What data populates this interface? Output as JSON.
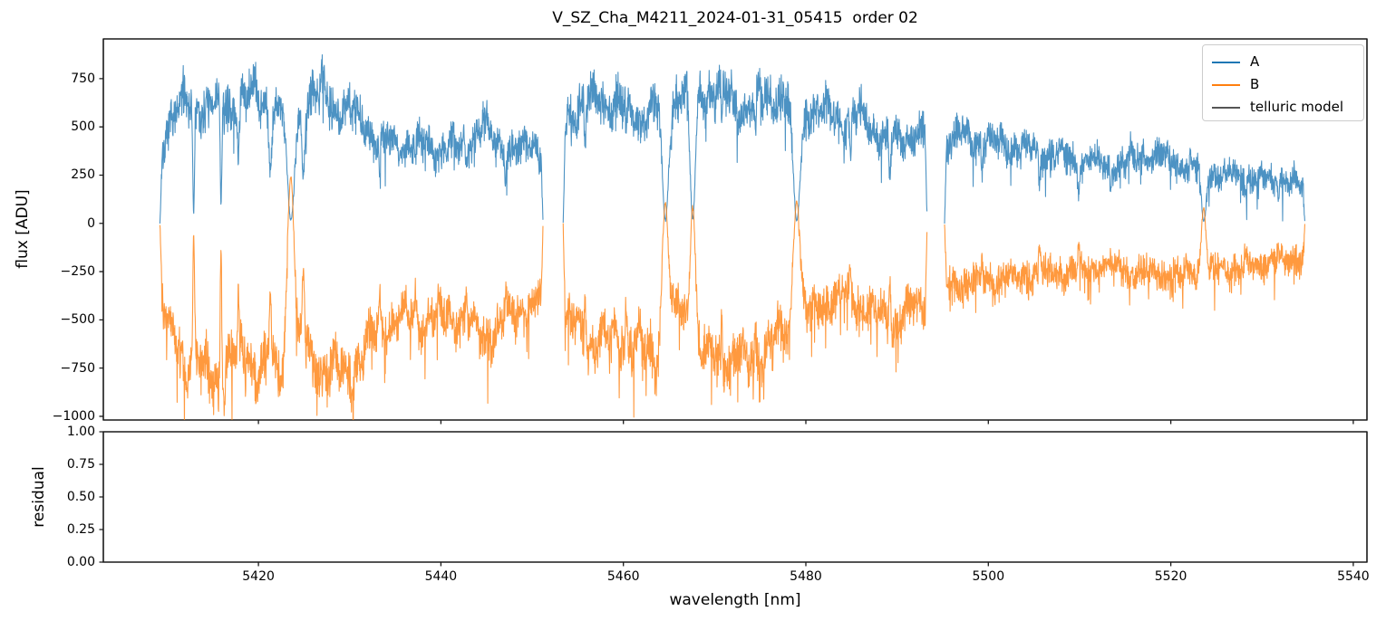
{
  "chart_data": {
    "type": "line",
    "title": "V_SZ_Cha_M4211_2024-01-31_05415  order 02",
    "xlabel": "wavelength [nm]",
    "xlim": [
      5403.0,
      5541.5
    ],
    "xticks": [
      [
        5420,
        "5420"
      ],
      [
        5440,
        "5440"
      ],
      [
        5460,
        "5460"
      ],
      [
        5480,
        "5480"
      ],
      [
        5500,
        "5500"
      ],
      [
        5520,
        "5520"
      ],
      [
        5540,
        "5540"
      ]
    ],
    "main_panel": {
      "ylabel": "flux [ADU]",
      "ylim": [
        -1019,
        956
      ],
      "yticks": [
        [
          750,
          "750"
        ],
        [
          500,
          "500"
        ],
        [
          250,
          "250"
        ],
        [
          0,
          "0"
        ],
        [
          -250,
          "−250"
        ],
        [
          -500,
          "−500"
        ],
        [
          -750,
          "−750"
        ],
        [
          -1000,
          "−1000"
        ]
      ]
    },
    "residual_panel": {
      "ylabel": "residual",
      "ylim": [
        0,
        1
      ],
      "yticks": [
        [
          1.0,
          "1.00"
        ],
        [
          0.75,
          "0.75"
        ],
        [
          0.5,
          "0.50"
        ],
        [
          0.25,
          "0.25"
        ],
        [
          0.0,
          "0.00"
        ]
      ],
      "series": []
    },
    "legend": {
      "position": "upper right",
      "entries": [
        {
          "label": "A",
          "color": "#1f77b4"
        },
        {
          "label": "B",
          "color": "#ff7f0e"
        },
        {
          "label": "telluric model",
          "color": "#555555"
        }
      ]
    },
    "grid": false,
    "frame_color": "#1a1a1a",
    "segments": [
      [
        5409.2,
        5451.2
      ],
      [
        5453.4,
        5493.3
      ],
      [
        5495.2,
        5534.7
      ]
    ],
    "telluric_lines": [
      [
        5412.9,
        0.1,
        0.92
      ],
      [
        5415.9,
        0.09,
        0.85
      ],
      [
        5417.8,
        0.07,
        0.45
      ],
      [
        5421.3,
        0.12,
        0.5
      ],
      [
        5423.55,
        0.4,
        0.975
      ],
      [
        5424.9,
        0.15,
        0.6
      ],
      [
        5433.3,
        0.08,
        0.35
      ],
      [
        5437.2,
        0.07,
        0.3
      ],
      [
        5442.8,
        0.07,
        0.3
      ],
      [
        5447.1,
        0.08,
        0.3
      ],
      [
        5455.8,
        0.08,
        0.35
      ],
      [
        5460.3,
        0.07,
        0.3
      ],
      [
        5464.6,
        0.35,
        0.975
      ],
      [
        5467.6,
        0.3,
        0.97
      ],
      [
        5470.8,
        0.08,
        0.3
      ],
      [
        5474.5,
        0.07,
        0.3
      ],
      [
        5479.0,
        0.4,
        0.975
      ],
      [
        5484.9,
        0.1,
        0.4
      ],
      [
        5489.2,
        0.1,
        0.45
      ],
      [
        5499.3,
        0.08,
        0.3
      ],
      [
        5505.6,
        0.09,
        0.5
      ],
      [
        5509.9,
        0.1,
        0.45
      ],
      [
        5513.4,
        0.07,
        0.3
      ],
      [
        5523.6,
        0.26,
        0.96
      ],
      [
        5528.2,
        0.08,
        0.35
      ],
      [
        5531.8,
        0.08,
        0.3
      ]
    ],
    "b_overshoot_bumps": [
      [
        5423.55,
        0.35,
        260
      ],
      [
        5464.6,
        0.3,
        120
      ],
      [
        5467.6,
        0.26,
        110
      ],
      [
        5479.0,
        0.35,
        130
      ],
      [
        5523.6,
        0.22,
        90
      ]
    ],
    "series": {
      "A": {
        "color": "#1f77b4",
        "alpha": 0.8,
        "linewidth": 1.1,
        "envelope": [
          [
            5409.2,
            260
          ],
          [
            5409.8,
            480
          ],
          [
            5410.5,
            570
          ],
          [
            5412,
            610
          ],
          [
            5414,
            630
          ],
          [
            5416,
            580
          ],
          [
            5417.5,
            630
          ],
          [
            5419,
            650
          ],
          [
            5420.5,
            630
          ],
          [
            5422,
            600
          ],
          [
            5425,
            640
          ],
          [
            5426.5,
            670
          ],
          [
            5428,
            650
          ],
          [
            5429.5,
            600
          ],
          [
            5431,
            530
          ],
          [
            5432.5,
            460
          ],
          [
            5434,
            430
          ],
          [
            5436,
            415
          ],
          [
            5438,
            400
          ],
          [
            5440,
            395
          ],
          [
            5442,
            385
          ],
          [
            5443.8,
            480
          ],
          [
            5444.6,
            520
          ],
          [
            5445.6,
            430
          ],
          [
            5447,
            395
          ],
          [
            5448.5,
            380
          ],
          [
            5450,
            410
          ],
          [
            5451.2,
            390
          ],
          [
            5453.4,
            520
          ],
          [
            5454.5,
            600
          ],
          [
            5456,
            620
          ],
          [
            5457.5,
            650
          ],
          [
            5459,
            630
          ],
          [
            5460.5,
            580
          ],
          [
            5462,
            560
          ],
          [
            5463.5,
            600
          ],
          [
            5466,
            680
          ],
          [
            5469,
            700
          ],
          [
            5470.5,
            690
          ],
          [
            5472,
            640
          ],
          [
            5473.5,
            600
          ],
          [
            5475,
            630
          ],
          [
            5476.5,
            680
          ],
          [
            5478,
            640
          ],
          [
            5480.5,
            600
          ],
          [
            5482,
            560
          ],
          [
            5483.5,
            540
          ],
          [
            5485,
            560
          ],
          [
            5486.5,
            520
          ],
          [
            5488,
            470
          ],
          [
            5490,
            430
          ],
          [
            5492,
            470
          ],
          [
            5493.3,
            450
          ],
          [
            5495.2,
            430
          ],
          [
            5496.5,
            460
          ],
          [
            5498,
            440
          ],
          [
            5500,
            420
          ],
          [
            5502,
            400
          ],
          [
            5504,
            385
          ],
          [
            5506,
            370
          ],
          [
            5508,
            350
          ],
          [
            5510,
            330
          ],
          [
            5512,
            310
          ],
          [
            5514,
            300
          ],
          [
            5516,
            330
          ],
          [
            5517.5,
            360
          ],
          [
            5519,
            340
          ],
          [
            5521,
            300
          ],
          [
            5523,
            270
          ],
          [
            5525,
            260
          ],
          [
            5527,
            250
          ],
          [
            5529,
            235
          ],
          [
            5531,
            220
          ],
          [
            5532.5,
            230
          ],
          [
            5534,
            210
          ],
          [
            5534.7,
            190
          ]
        ]
      },
      "B": {
        "color": "#ff7f0e",
        "alpha": 0.8,
        "linewidth": 1.1,
        "envelope": [
          [
            5409.2,
            -300
          ],
          [
            5410,
            -550
          ],
          [
            5411,
            -620
          ],
          [
            5412.5,
            -720
          ],
          [
            5414,
            -780
          ],
          [
            5415.5,
            -800
          ],
          [
            5417,
            -720
          ],
          [
            5418.5,
            -680
          ],
          [
            5420,
            -720
          ],
          [
            5421.5,
            -780
          ],
          [
            5425,
            -700
          ],
          [
            5426.5,
            -720
          ],
          [
            5428,
            -760
          ],
          [
            5429.5,
            -790
          ],
          [
            5431,
            -730
          ],
          [
            5432.5,
            -600
          ],
          [
            5434,
            -520
          ],
          [
            5436,
            -490
          ],
          [
            5438,
            -510
          ],
          [
            5440,
            -480
          ],
          [
            5442,
            -470
          ],
          [
            5443.8,
            -540
          ],
          [
            5445,
            -580
          ],
          [
            5446.5,
            -530
          ],
          [
            5448,
            -460
          ],
          [
            5449.5,
            -420
          ],
          [
            5451.2,
            -400
          ],
          [
            5453.4,
            -480
          ],
          [
            5455,
            -560
          ],
          [
            5456.5,
            -600
          ],
          [
            5458,
            -620
          ],
          [
            5459.5,
            -580
          ],
          [
            5461,
            -620
          ],
          [
            5462.5,
            -660
          ],
          [
            5463.8,
            -680
          ],
          [
            5466,
            -420
          ],
          [
            5469,
            -700
          ],
          [
            5470.5,
            -720
          ],
          [
            5472,
            -680
          ],
          [
            5473.5,
            -720
          ],
          [
            5475,
            -680
          ],
          [
            5476.5,
            -620
          ],
          [
            5478,
            -580
          ],
          [
            5480.5,
            -480
          ],
          [
            5482,
            -400
          ],
          [
            5483.5,
            -370
          ],
          [
            5485,
            -400
          ],
          [
            5486.5,
            -430
          ],
          [
            5488,
            -480
          ],
          [
            5489.5,
            -520
          ],
          [
            5491,
            -470
          ],
          [
            5492.3,
            -430
          ],
          [
            5493.3,
            -450
          ],
          [
            5495.2,
            -330
          ],
          [
            5497,
            -310
          ],
          [
            5499,
            -300
          ],
          [
            5501,
            -290
          ],
          [
            5503,
            -280
          ],
          [
            5505,
            -265
          ],
          [
            5507,
            -255
          ],
          [
            5509,
            -245
          ],
          [
            5511,
            -240
          ],
          [
            5513,
            -235
          ],
          [
            5515,
            -240
          ],
          [
            5517,
            -255
          ],
          [
            5519,
            -260
          ],
          [
            5521,
            -270
          ],
          [
            5523,
            -260
          ],
          [
            5525,
            -240
          ],
          [
            5527,
            -230
          ],
          [
            5529,
            -220
          ],
          [
            5531,
            -210
          ],
          [
            5533,
            -195
          ],
          [
            5534.7,
            -170
          ]
        ]
      },
      "telluric_model": {
        "color": "#555555",
        "drawn_in_plot": false
      }
    },
    "noise": {
      "seed": 7,
      "step_nm": 0.032,
      "edge_taper_nm": 0.22,
      "amp_A": 140,
      "amp_B": 160,
      "spike_prob_A": 0.02,
      "spike_amp_A": 260,
      "spike_prob_B": 0.035,
      "spike_amp_B": 320
    }
  }
}
